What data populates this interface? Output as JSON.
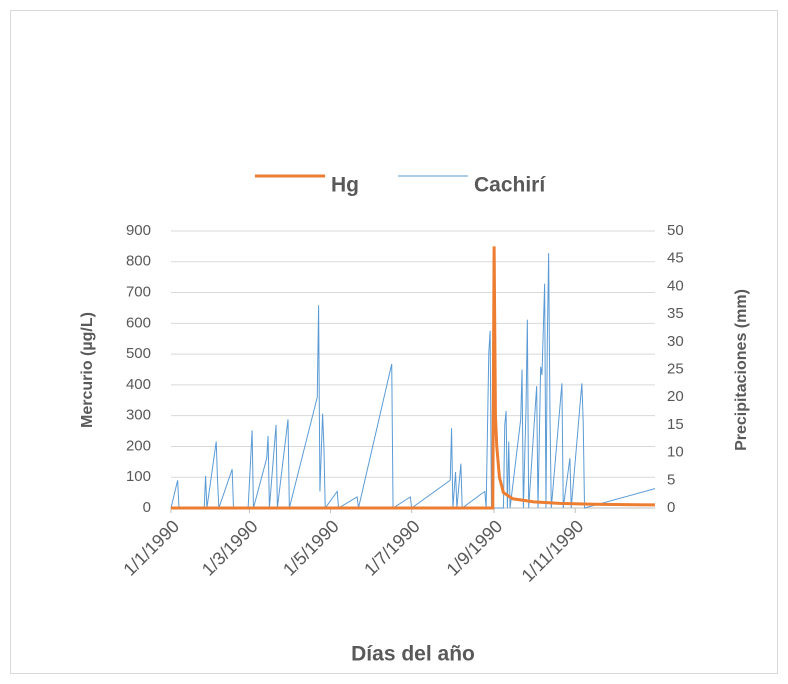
{
  "chart_data": {
    "type": "line",
    "x_label": "Días del año",
    "y_label": "Mercurio (µg/L)",
    "y2_label": "Precipitaciones (mm)",
    "xlim": [
      "1990-01-01",
      "1990-12-31"
    ],
    "xticks": [
      {
        "value": "1990-01-01",
        "label": "1/1/1990"
      },
      {
        "value": "1990-03-01",
        "label": "1/3/1990"
      },
      {
        "value": "1990-05-01",
        "label": "1/5/1990"
      },
      {
        "value": "1990-07-01",
        "label": "1/7/1990"
      },
      {
        "value": "1990-09-01",
        "label": "1/9/1990"
      },
      {
        "value": "1990-11-01",
        "label": "1/11/1990"
      }
    ],
    "ylim": [
      0,
      900
    ],
    "yticks": [
      0,
      100,
      200,
      300,
      400,
      500,
      600,
      700,
      800,
      900
    ],
    "y2lim": [
      0,
      50
    ],
    "y2ticks": [
      0,
      5,
      10,
      15,
      20,
      25,
      30,
      35,
      40,
      45,
      50
    ],
    "grid": true,
    "legend": "top",
    "series": [
      {
        "name": "Hg",
        "color": "#ed7d31",
        "axis": "y",
        "x": [
          "1990-01-01",
          "1990-08-31",
          "1990-09-01",
          "1990-09-02",
          "1990-09-03",
          "1990-09-05",
          "1990-09-08",
          "1990-09-15",
          "1990-10-01",
          "1990-10-20",
          "1990-11-15",
          "1990-12-31"
        ],
        "values": [
          0,
          0,
          850,
          300,
          200,
          100,
          50,
          30,
          20,
          15,
          12,
          10
        ]
      },
      {
        "name": "Cachirí",
        "color": "#5b9bd5",
        "axis": "y2",
        "x": [
          "1990-01-01",
          "1990-01-06",
          "1990-01-07",
          "1990-01-26",
          "1990-01-27",
          "1990-01-28",
          "1990-02-04",
          "1990-02-05",
          "1990-02-06",
          "1990-02-16",
          "1990-02-17",
          "1990-02-28",
          "1990-03-03",
          "1990-03-04",
          "1990-03-14",
          "1990-03-15",
          "1990-03-16",
          "1990-03-21",
          "1990-03-22",
          "1990-03-30",
          "1990-03-31",
          "1990-04-21",
          "1990-04-22",
          "1990-04-23",
          "1990-04-25",
          "1990-04-26",
          "1990-04-27",
          "1990-05-06",
          "1990-05-07",
          "1990-05-21",
          "1990-05-22",
          "1990-06-16",
          "1990-06-17",
          "1990-06-30",
          "1990-07-01",
          "1990-07-30",
          "1990-07-31",
          "1990-08-01",
          "1990-08-03",
          "1990-08-04",
          "1990-08-07",
          "1990-08-08",
          "1990-08-25",
          "1990-08-26",
          "1990-08-28",
          "1990-08-29",
          "1990-08-30",
          "1990-09-08",
          "1990-09-09",
          "1990-09-10",
          "1990-09-11",
          "1990-09-12",
          "1990-09-13",
          "1990-09-21",
          "1990-09-22",
          "1990-09-23",
          "1990-09-25",
          "1990-09-26",
          "1990-09-27",
          "1990-10-03",
          "1990-10-04",
          "1990-10-06",
          "1990-10-07",
          "1990-10-09",
          "1990-10-10",
          "1990-10-11",
          "1990-10-12",
          "1990-10-13",
          "1990-10-14",
          "1990-10-22",
          "1990-10-23",
          "1990-10-28",
          "1990-10-29",
          "1990-11-06",
          "1990-11-07",
          "1990-11-08",
          "1990-12-31"
        ],
        "values": [
          0,
          5,
          0,
          0,
          5.8,
          0,
          12,
          5,
          0,
          7,
          0,
          0,
          14,
          0,
          9,
          13,
          0,
          15,
          0,
          16,
          0,
          20,
          36.6,
          3,
          17,
          11,
          0,
          3,
          0,
          2,
          0,
          26,
          0,
          2,
          0,
          5,
          14.4,
          0,
          6.5,
          0,
          8,
          0,
          3,
          0,
          28,
          32,
          0,
          0,
          15,
          17.5,
          0,
          12,
          0,
          16,
          25,
          0,
          18,
          34,
          0,
          22,
          0,
          25.5,
          24,
          40.5,
          0,
          30,
          46,
          17,
          0,
          22.5,
          0,
          9,
          0,
          22.5,
          15.5,
          0,
          3.5
        ]
      }
    ]
  }
}
